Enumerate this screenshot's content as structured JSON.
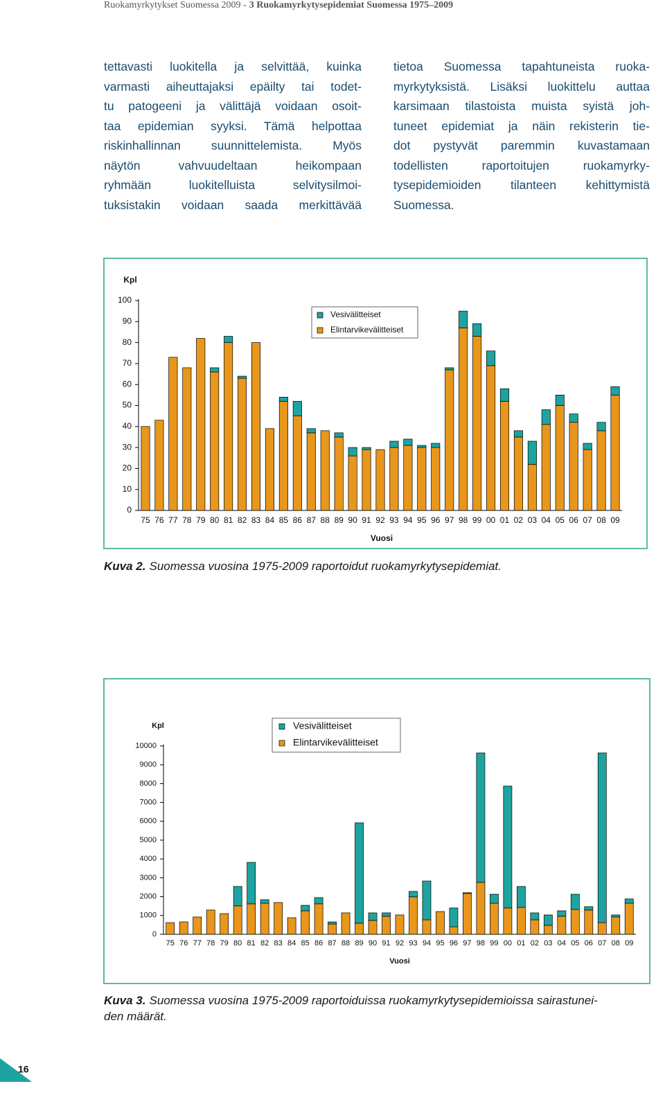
{
  "header": {
    "publication": "Ruokamyrkytykset Suomessa 2009 -",
    "chapter": "3 Ruokamyrkytysepidemiat Suomessa 1975–2009"
  },
  "text": {
    "left": [
      "tettavasti luokitella ja selvittää, kuinka",
      "varmasti aiheuttajaksi epäilty tai todet-",
      "tu patogeeni ja välittäjä voidaan osoit-",
      "taa epidemian syyksi. Tämä helpottaa",
      "riskinhallinnan suunnittelemista. Myös",
      "näytön vahvuudeltaan heikompaan",
      "ryhmään luokitelluista selvitysilmoi-",
      "tuksistakin voidaan saada merkittävää"
    ],
    "right": [
      "tietoa Suomessa tapahtuneista ruoka-",
      "myrkytyksistä. Lisäksi luokittelu auttaa",
      "karsimaan tilastoista muista syistä joh-",
      "tuneet epidemiat ja näin rekisterin tie-",
      "dot pystyvät paremmin kuvastamaan",
      "todellisten raportoitujen ruokamyrky-",
      "tysepidemioiden tilanteen kehittymistä",
      "Suomessa."
    ]
  },
  "chart_data": [
    {
      "type": "bar",
      "stacked": true,
      "ylabel": "Kpl",
      "xlabel": "Vuosi",
      "categories": [
        "75",
        "76",
        "77",
        "78",
        "79",
        "80",
        "81",
        "82",
        "83",
        "84",
        "85",
        "86",
        "87",
        "88",
        "89",
        "90",
        "91",
        "92",
        "93",
        "94",
        "95",
        "96",
        "97",
        "98",
        "99",
        "00",
        "01",
        "02",
        "03",
        "04",
        "05",
        "06",
        "07",
        "08",
        "09"
      ],
      "series": [
        {
          "name": "Elintarvikevälitteiset",
          "color": "#e8961c",
          "values": [
            40,
            43,
            73,
            68,
            82,
            66,
            80,
            63,
            80,
            39,
            52,
            45,
            37,
            38,
            35,
            26,
            29,
            29,
            30,
            31,
            30,
            30,
            67,
            87,
            83,
            69,
            52,
            35,
            22,
            41,
            50,
            42,
            29,
            38,
            55
          ]
        },
        {
          "name": "Vesivälitteiset",
          "color": "#1fa3a0",
          "values": [
            0,
            0,
            0,
            0,
            0,
            2,
            3,
            1,
            0,
            0,
            2,
            7,
            2,
            0,
            2,
            4,
            1,
            0,
            3,
            3,
            1,
            2,
            1,
            8,
            6,
            7,
            6,
            3,
            11,
            7,
            5,
            4,
            3,
            4,
            4
          ]
        }
      ],
      "ylim": [
        0,
        100
      ],
      "yticks": [
        0,
        10,
        20,
        30,
        40,
        50,
        60,
        70,
        80,
        90,
        100
      ]
    },
    {
      "type": "bar",
      "stacked": true,
      "ylabel": "Kpl",
      "xlabel": "Vuosi",
      "categories": [
        "75",
        "76",
        "77",
        "78",
        "79",
        "80",
        "81",
        "82",
        "83",
        "84",
        "85",
        "86",
        "87",
        "88",
        "89",
        "90",
        "91",
        "92",
        "93",
        "94",
        "95",
        "96",
        "97",
        "98",
        "99",
        "00",
        "01",
        "02",
        "03",
        "04",
        "05",
        "06",
        "07",
        "08",
        "09"
      ],
      "series": [
        {
          "name": "Elintarvikevälitteiset",
          "color": "#e8961c",
          "values": [
            620,
            660,
            920,
            1290,
            1100,
            1510,
            1620,
            1650,
            1690,
            880,
            1250,
            1620,
            550,
            1140,
            590,
            740,
            960,
            1030,
            1990,
            770,
            1210,
            400,
            2170,
            2760,
            1650,
            1400,
            1430,
            770,
            480,
            960,
            1320,
            1290,
            620,
            920,
            1650
          ]
        },
        {
          "name": "Vesivälitteiset",
          "color": "#1fa3a0",
          "values": [
            0,
            0,
            0,
            0,
            0,
            1030,
            2200,
            190,
            0,
            0,
            290,
            330,
            110,
            0,
            5330,
            400,
            180,
            0,
            290,
            2060,
            0,
            1000,
            40,
            6870,
            480,
            6470,
            1110,
            370,
            550,
            290,
            810,
            180,
            9010,
            110,
            230
          ]
        }
      ],
      "ylim": [
        0,
        10000
      ],
      "yticks": [
        0,
        1000,
        2000,
        3000,
        4000,
        5000,
        6000,
        7000,
        8000,
        9000,
        10000
      ]
    }
  ],
  "captions": [
    {
      "label": "Kuva 2.",
      "lines": [
        "Suomessa vuosina 1975-2009 raportoidut ruokamyrkytysepidemiat."
      ]
    },
    {
      "label": "Kuva 3.",
      "lines": [
        "Suomessa vuosina 1975-2009 raportoiduissa ruokamyrkytysepidemioissa sairastunei-",
        "den määrät."
      ]
    }
  ],
  "page_number": "16"
}
